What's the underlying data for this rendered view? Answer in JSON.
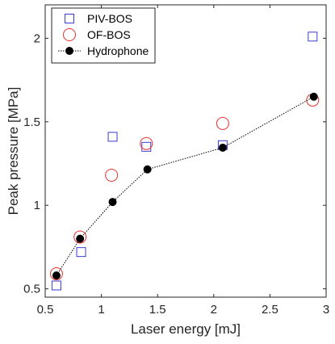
{
  "chart_data": {
    "type": "scatter",
    "xlabel": "Laser energy [mJ]",
    "ylabel": "Peak pressure [MPa]",
    "xlim": [
      0.5,
      3.0
    ],
    "ylim": [
      0.45,
      2.2
    ],
    "xticks": [
      0.5,
      1,
      1.5,
      2,
      2.5,
      3
    ],
    "xtick_labels": [
      "0.5",
      "1",
      "1.5",
      "2",
      "2.5",
      "3"
    ],
    "yticks": [
      0.5,
      1,
      1.5,
      2
    ],
    "ytick_labels": [
      "0.5",
      "1",
      "1.5",
      "2"
    ],
    "grid": false,
    "legend_position": "top-left",
    "series": [
      {
        "name": "PIV-BOS",
        "marker": "square-open",
        "color": "#3b3bd6",
        "x": [
          0.6,
          0.82,
          1.1,
          1.4,
          2.08,
          2.88
        ],
        "y": [
          0.52,
          0.72,
          1.41,
          1.35,
          1.36,
          2.01
        ]
      },
      {
        "name": "OF-BOS",
        "marker": "circle-open",
        "color": "#e8322e",
        "x": [
          0.6,
          0.81,
          1.09,
          1.4,
          2.08,
          2.88
        ],
        "y": [
          0.59,
          0.81,
          1.18,
          1.37,
          1.49,
          1.63
        ]
      },
      {
        "name": "Hydrophone",
        "marker": "circle-filled",
        "line": "dotted",
        "color": "#000000",
        "x": [
          0.6,
          0.81,
          1.1,
          1.41,
          2.08,
          2.89
        ],
        "y": [
          0.58,
          0.8,
          1.02,
          1.215,
          1.345,
          1.65
        ]
      }
    ]
  }
}
